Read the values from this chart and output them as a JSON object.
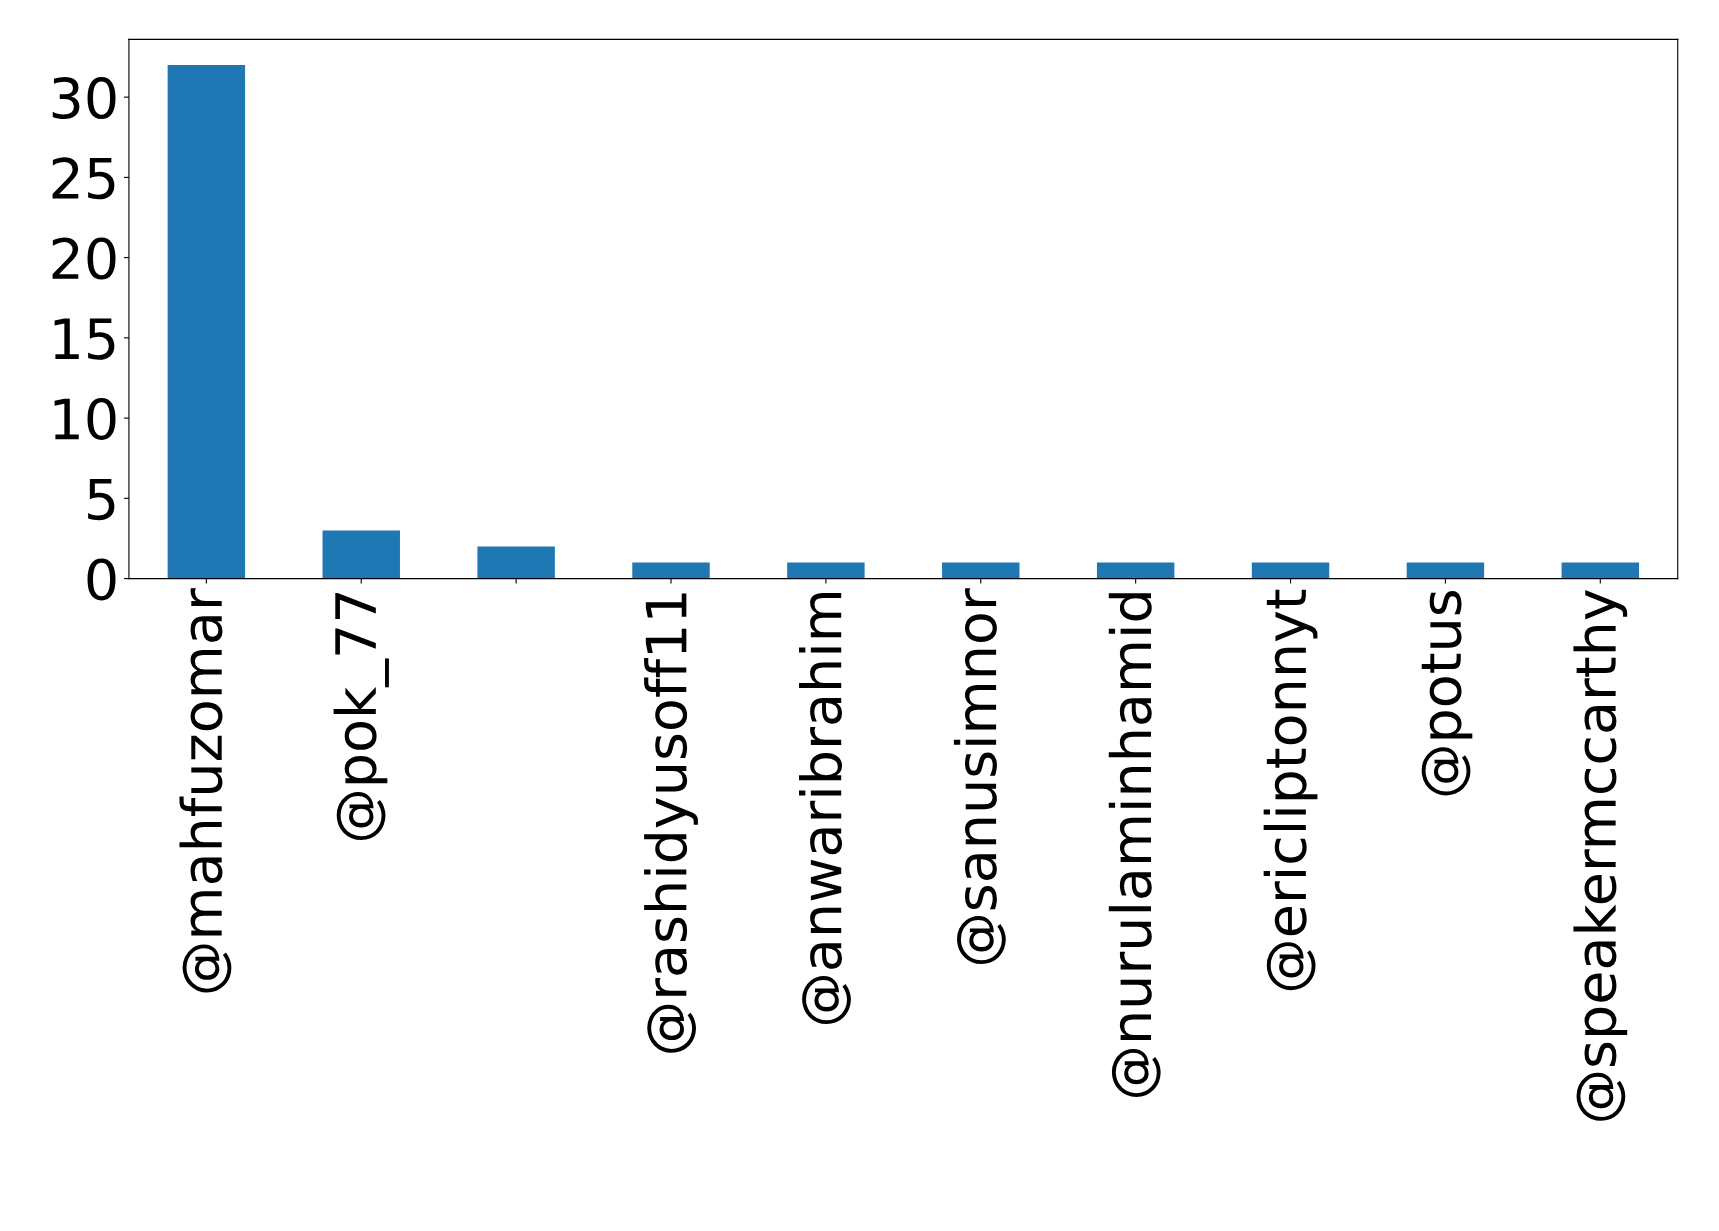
{
  "chart_data": {
    "type": "bar",
    "categories": [
      "@mahfuzomar",
      "@pok_77",
      null,
      "@rashidyusoff11",
      "@anwaribrahim",
      "@sanusimnor",
      "@nurulaminhamid",
      "@ericliptonnyt",
      "@potus",
      "@speakermccarthy"
    ],
    "values": [
      32,
      3,
      2,
      1,
      1,
      1,
      1,
      1,
      1,
      1
    ],
    "color": "#1f77b4",
    "ylim": [
      0,
      33.6
    ],
    "yticks": [
      0,
      5,
      10,
      15,
      20,
      25,
      30
    ],
    "grid": false
  }
}
